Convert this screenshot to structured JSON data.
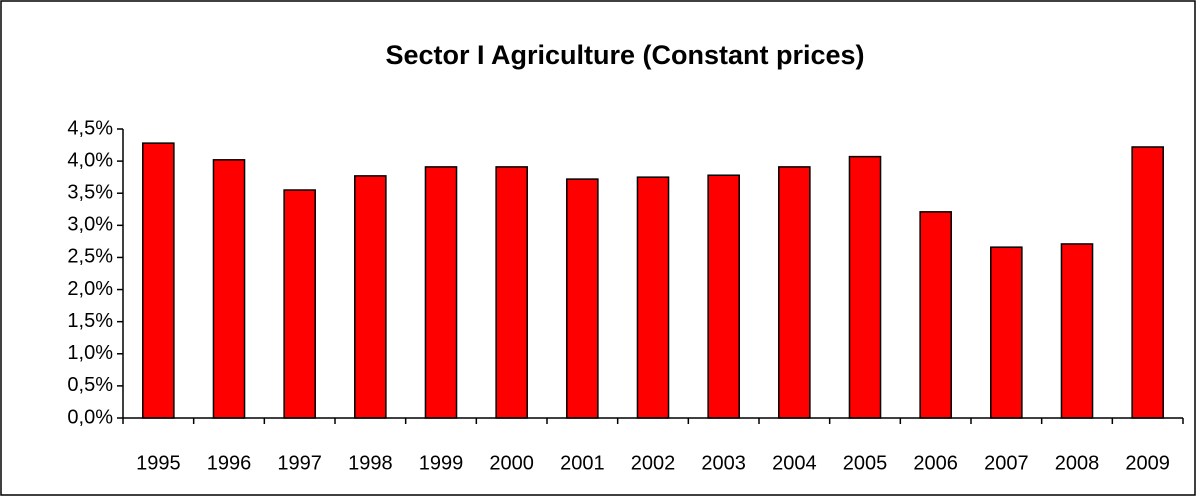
{
  "chart_data": {
    "type": "bar",
    "title": "Sector I Agriculture (Constant prices)",
    "categories": [
      "1995",
      "1996",
      "1997",
      "1998",
      "1999",
      "2000",
      "2001",
      "2002",
      "2003",
      "2004",
      "2005",
      "2006",
      "2007",
      "2008",
      "2009"
    ],
    "values": [
      4.28,
      4.02,
      3.55,
      3.77,
      3.91,
      3.91,
      3.72,
      3.75,
      3.78,
      3.91,
      4.07,
      3.21,
      2.66,
      2.71,
      4.22
    ],
    "color": "#ff0000",
    "ylim": [
      0,
      4.5
    ],
    "yticks": [
      {
        "value": 0,
        "label": "0,0%"
      },
      {
        "value": 0.5,
        "label": "0,5%"
      },
      {
        "value": 1,
        "label": "1,0%"
      },
      {
        "value": 1.5,
        "label": "1,5%"
      },
      {
        "value": 2,
        "label": "2,0%"
      },
      {
        "value": 2.5,
        "label": "2,5%"
      },
      {
        "value": 3,
        "label": "3,0%"
      },
      {
        "value": 3.5,
        "label": "3,5%"
      },
      {
        "value": 4,
        "label": "4,0%"
      },
      {
        "value": 4.5,
        "label": "4,5%"
      }
    ],
    "grid": false
  }
}
